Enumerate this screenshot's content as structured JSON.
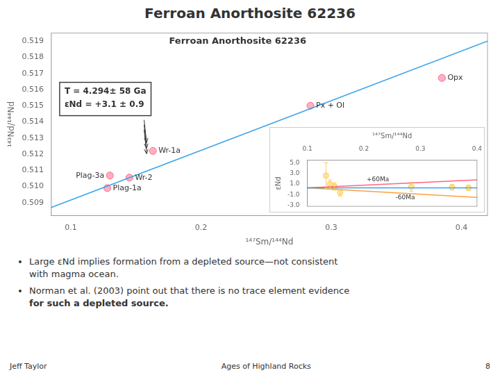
{
  "chart_data": [
    {
      "type": "scatter",
      "title": "Ferroan Anorthosite 62236",
      "inner_title": "Ferroan Anorthosite 62236",
      "box_text": [
        "T = 4.294± 58 Ga",
        "εNd = +3.1 ± 0.9"
      ],
      "x_label": "¹⁴⁷Sm/¹⁴⁴Nd",
      "y_label": "¹⁴³Nd/¹⁴⁴Nd",
      "xlim": [
        0.085,
        0.42
      ],
      "ylim": [
        0.5082,
        0.5195
      ],
      "xticks": [
        0.1,
        0.2,
        0.3,
        0.4
      ],
      "yticks": [
        0.509,
        {
          "value": 0.51,
          "label": "0.510"
        },
        0.511,
        0.512,
        0.513,
        0.514,
        0.515,
        0.516,
        0.517,
        0.518,
        0.519
      ],
      "grid": false,
      "series": [
        {
          "type": "line",
          "x": [
            0.085,
            0.42
          ],
          "values": [
            0.5087,
            0.519
          ]
        },
        {
          "type": "scatter",
          "x": [
            0.13,
            0.145,
            0.163,
            0.128,
            0.284,
            0.385
          ],
          "values": [
            0.51068,
            0.51055,
            0.5122,
            0.5099,
            0.515,
            0.51672
          ],
          "labels": [
            "Plag-3a",
            "Wr-2",
            "Wr-1a",
            "Plag-1a",
            "Px + Ol",
            "Opx"
          ]
        }
      ],
      "bullets": [
        [
          "Large εNd implies formation from a depleted source—not consistent",
          "with magma ocean."
        ],
        [
          "Norman et al. (2003) point out that there is no trace element evidence",
          "for such a depleted source."
        ]
      ],
      "footer": [
        "Jeff Taylor",
        "Ages of Highland Rocks",
        "8"
      ]
    },
    {
      "type": "scatter",
      "x_label": "¹⁴⁷Sm/¹⁴⁴Nd",
      "y_label": "εNd",
      "xlim": [
        0.1,
        0.4
      ],
      "ylim": [
        -3.2,
        5.5
      ],
      "xticks": [
        0.1,
        0.2,
        0.3,
        0.4
      ],
      "yticks": [
        {
          "value": -3.0,
          "label": "-3.0"
        },
        {
          "value": -1.0,
          "label": "-1.0"
        },
        {
          "value": 1.0,
          "label": "1.0"
        },
        {
          "value": 3.0,
          "label": "3.0"
        },
        {
          "value": 5.0,
          "label": "5.0"
        }
      ],
      "grid": false,
      "series": [
        {
          "type": "line",
          "x": [
            0.1,
            0.4
          ],
          "values": [
            0.3,
            0.3
          ]
        },
        {
          "type": "line",
          "x": [
            0.1,
            0.4
          ],
          "values": [
            0.3,
            1.8
          ],
          "label": "+60Ma"
        },
        {
          "type": "line",
          "x": [
            0.1,
            0.4
          ],
          "values": [
            0.3,
            -1.5
          ],
          "label": "-60Ma"
        },
        {
          "type": "scatter",
          "x": [
            0.133,
            0.14,
            0.148,
            0.158,
            0.284,
            0.356,
            0.385
          ],
          "values": [
            2.6,
            1.0,
            0.55,
            -0.6,
            0.5,
            0.4,
            0.3
          ],
          "errors": [
            2.4,
            0.8,
            0.7,
            0.65,
            0.85,
            0.5,
            0.5
          ]
        }
      ]
    }
  ]
}
